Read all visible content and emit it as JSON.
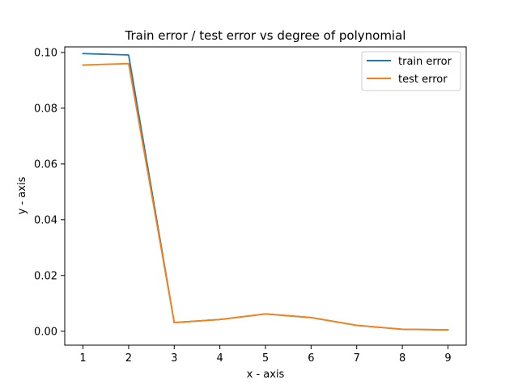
{
  "chart_data": {
    "type": "line",
    "title": "Train error / test error vs degree of polynomial",
    "xlabel": "x - axis",
    "ylabel": "y - axis",
    "x": [
      1,
      2,
      3,
      4,
      5,
      6,
      7,
      8,
      9
    ],
    "xlim": [
      0.6,
      9.4
    ],
    "ylim": [
      -0.005,
      0.102
    ],
    "xticks": [
      1,
      2,
      3,
      4,
      5,
      6,
      7,
      8,
      9
    ],
    "yticks": [
      0.0,
      0.02,
      0.04,
      0.06,
      0.08,
      0.1
    ],
    "ytick_labels": [
      "0.00",
      "0.02",
      "0.04",
      "0.06",
      "0.08",
      "0.10"
    ],
    "grid": false,
    "legend_position": "top-right",
    "series": [
      {
        "name": "train error",
        "color": "#1f77b4",
        "values": [
          0.0996,
          0.0991,
          0.0031,
          0.0042,
          0.0062,
          0.0049,
          0.0021,
          0.0007,
          0.0005
        ]
      },
      {
        "name": "test error",
        "color": "#ff7f0e",
        "values": [
          0.0955,
          0.096,
          0.0031,
          0.0042,
          0.0062,
          0.0049,
          0.0021,
          0.0007,
          0.0005
        ]
      }
    ]
  }
}
